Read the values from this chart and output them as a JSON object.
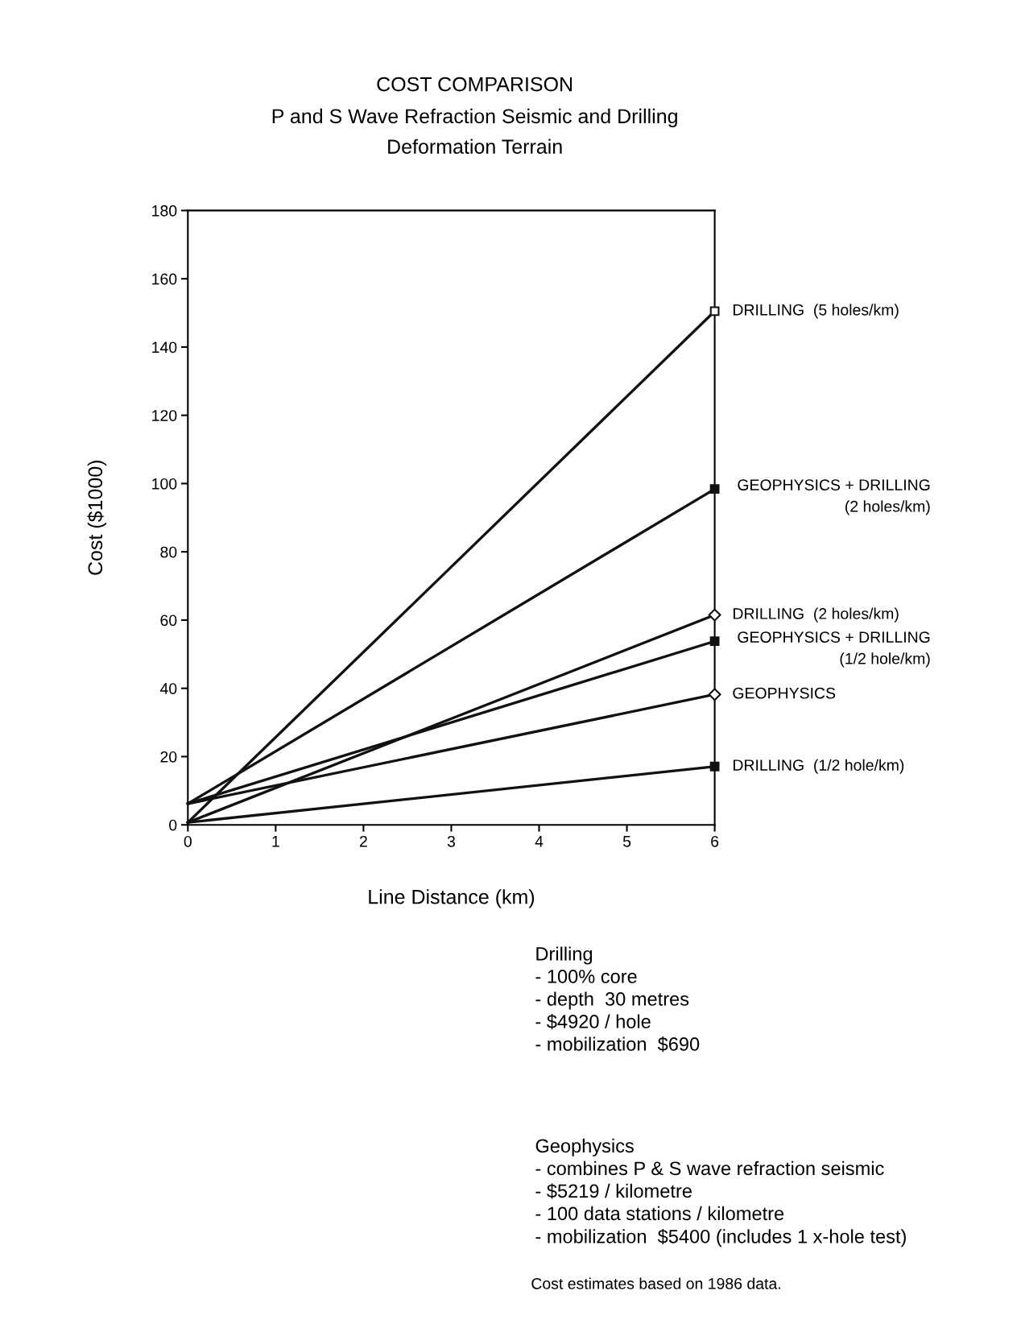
{
  "chart_data": {
    "type": "line",
    "title": "COST COMPARISON",
    "subtitle": "P and S Wave Refraction Seismic and Drilling\nDeformation Terrain",
    "xlabel": "Line Distance (km)",
    "ylabel": "Cost ($1000)",
    "x": [
      0,
      6
    ],
    "series": [
      {
        "name": "DRILLING  (5 holes/km)",
        "color": "#111111",
        "marker": "square",
        "values": [
          0.7,
          150.5
        ]
      },
      {
        "name": "GEOPHYSICS + DRILLING\n(2 holes/km)",
        "color": "#111111",
        "marker": "square",
        "values": [
          6.2,
          98.4
        ]
      },
      {
        "name": "DRILLING  (2 holes/km)",
        "color": "#111111",
        "marker": "diamond",
        "values": [
          0.7,
          61.5
        ]
      },
      {
        "name": "GEOPHYSICS + DRILLING\n(1/2 hole/km)",
        "color": "#111111",
        "marker": "square",
        "values": [
          6.2,
          53.8
        ]
      },
      {
        "name": "GEOPHYSICS",
        "color": "#111111",
        "marker": "diamond",
        "values": [
          6.2,
          38.2
        ]
      },
      {
        "name": "DRILLING  (1/2 hole/km)",
        "color": "#111111",
        "marker": "square",
        "values": [
          0.7,
          17.1
        ]
      }
    ],
    "xlim": [
      0,
      6
    ],
    "ylim": [
      0,
      180
    ],
    "xticks": [
      0,
      1,
      2,
      3,
      4,
      5,
      6
    ],
    "yticks": [
      0,
      20,
      40,
      60,
      80,
      100,
      120,
      140,
      160,
      180
    ],
    "grid": false,
    "legend": false,
    "line_style": "solid",
    "annotations": [
      "Drilling\n- 100% core\n- depth  30 metres\n- $4920 / hole\n- mobilization  $690",
      "Geophysics\n- combines P & S wave refraction seismic\n- $5219 / kilometre\n- 100 data stations / kilometre\n- mobilization  $5400 (includes 1 x-hole test)",
      "Cost estimates based on 1986 data."
    ]
  }
}
